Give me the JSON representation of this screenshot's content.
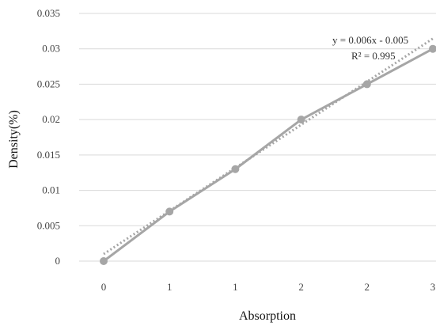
{
  "chart_data": {
    "type": "line",
    "x_categories": [
      "0",
      "1",
      "1",
      "2",
      "2",
      "3"
    ],
    "series": [
      {
        "values": [
          0,
          0.007,
          0.013,
          0.02,
          0.025,
          0.03
        ],
        "color": "#a6a6a6"
      }
    ],
    "trendline": {
      "style": "dotted",
      "color": "#a6a6a6",
      "equation": "y = 0.006x - 0.005",
      "r_squared": "R² = 0.995",
      "slope": 0.006,
      "intercept": -0.005
    },
    "xlabel": "Absorption",
    "ylabel": "Density(%)",
    "ylim": [
      0,
      0.035
    ],
    "yticks": [
      "0",
      "0.005",
      "0.01",
      "0.015",
      "0.02",
      "0.025",
      "0.03",
      "0.035"
    ],
    "grid": "horizontal",
    "grid_color": "#d9d9d9"
  }
}
